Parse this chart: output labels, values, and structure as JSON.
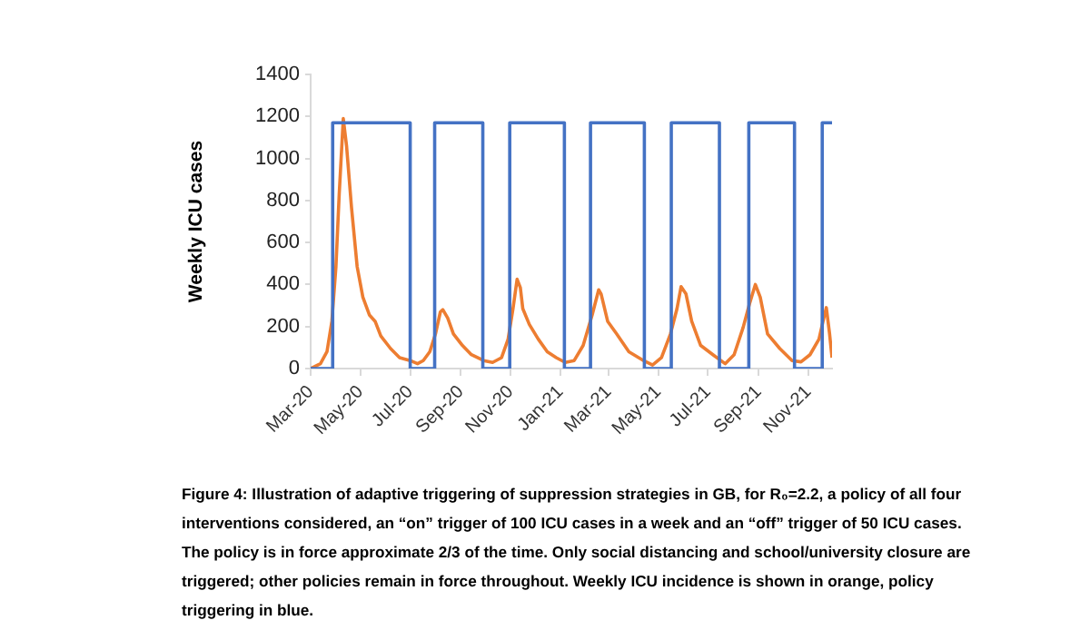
{
  "chart_data": {
    "type": "line",
    "ylabel": "Weekly ICU cases",
    "ylim": [
      0,
      1400
    ],
    "yticks": [
      0,
      200,
      400,
      600,
      800,
      1000,
      1200,
      1400
    ],
    "xlim": [
      "2020-03-01",
      "2021-11-30"
    ],
    "xticks": [
      {
        "value": "2020-03-01",
        "label": "Mar-20"
      },
      {
        "value": "2020-05-01",
        "label": "May-20"
      },
      {
        "value": "2020-07-01",
        "label": "Jul-20"
      },
      {
        "value": "2020-09-01",
        "label": "Sep-20"
      },
      {
        "value": "2020-11-01",
        "label": "Nov-20"
      },
      {
        "value": "2021-01-01",
        "label": "Jan-21"
      },
      {
        "value": "2021-03-01",
        "label": "Mar-21"
      },
      {
        "value": "2021-05-01",
        "label": "May-21"
      },
      {
        "value": "2021-07-01",
        "label": "Jul-21"
      },
      {
        "value": "2021-09-01",
        "label": "Sep-21"
      },
      {
        "value": "2021-11-01",
        "label": "Nov-21"
      }
    ],
    "grid": false,
    "legend": false,
    "marker": "none",
    "line_style": "solid",
    "series": [
      {
        "type": "step",
        "color": "#4472c4",
        "x": [
          "2020-03-01",
          "2020-03-28",
          "2020-07-01",
          "2020-07-31",
          "2020-09-28",
          "2020-10-31",
          "2021-01-06",
          "2021-02-07",
          "2021-04-14",
          "2021-05-17",
          "2021-07-15",
          "2021-08-20",
          "2021-10-15",
          "2021-11-18",
          "2021-11-30"
        ],
        "values": [
          0,
          1170,
          0,
          1170,
          0,
          1170,
          0,
          1170,
          0,
          1170,
          0,
          1170,
          0,
          1170,
          1170
        ]
      },
      {
        "type": "line",
        "color": "#ed7d31",
        "x": [
          "2020-03-01",
          "2020-03-13",
          "2020-03-21",
          "2020-03-27",
          "2020-04-01",
          "2020-04-05",
          "2020-04-10",
          "2020-04-14",
          "2020-04-20",
          "2020-04-27",
          "2020-05-04",
          "2020-05-12",
          "2020-05-19",
          "2020-05-26",
          "2020-06-07",
          "2020-06-18",
          "2020-07-01",
          "2020-07-10",
          "2020-07-17",
          "2020-07-25",
          "2020-08-01",
          "2020-08-07",
          "2020-08-10",
          "2020-08-16",
          "2020-08-23",
          "2020-09-03",
          "2020-09-14",
          "2020-09-29",
          "2020-10-10",
          "2020-10-21",
          "2020-10-29",
          "2020-11-04",
          "2020-11-09",
          "2020-11-13",
          "2020-11-16",
          "2020-11-24",
          "2020-12-05",
          "2020-12-16",
          "2020-12-27",
          "2021-01-07",
          "2021-01-18",
          "2021-01-29",
          "2021-02-09",
          "2021-02-17",
          "2021-02-20",
          "2021-02-28",
          "2021-03-11",
          "2021-03-26",
          "2021-04-13",
          "2021-04-24",
          "2021-05-05",
          "2021-05-16",
          "2021-05-24",
          "2021-05-29",
          "2021-06-04",
          "2021-06-11",
          "2021-06-22",
          "2021-07-07",
          "2021-07-22",
          "2021-08-02",
          "2021-08-13",
          "2021-08-21",
          "2021-08-28",
          "2021-09-03",
          "2021-09-12",
          "2021-09-27",
          "2021-10-12",
          "2021-10-23",
          "2021-11-03",
          "2021-11-14",
          "2021-11-19",
          "2021-11-23",
          "2021-11-27",
          "2021-11-30"
        ],
        "values": [
          0,
          23,
          80,
          225,
          485,
          830,
          1190,
          1060,
          770,
          485,
          340,
          255,
          225,
          155,
          95,
          52,
          38,
          23,
          38,
          80,
          165,
          270,
          280,
          240,
          165,
          110,
          66,
          38,
          29,
          52,
          140,
          285,
          425,
          385,
          285,
          210,
          140,
          80,
          52,
          29,
          38,
          110,
          255,
          375,
          355,
          225,
          165,
          80,
          38,
          17,
          52,
          165,
          285,
          390,
          355,
          225,
          110,
          66,
          23,
          66,
          195,
          310,
          400,
          340,
          165,
          95,
          38,
          32,
          66,
          140,
          225,
          290,
          165,
          52
        ]
      }
    ],
    "annotations": [
      "Figure 4: Illustration of adaptive triggering of suppression strategies in GB, for R₀=2.2, a policy of all four interventions considered, an “on” trigger of 100 ICU cases in a week and an “off” trigger of 50 ICU cases.  The policy is in force approximate 2/3 of the time. Only social distancing and school/university closure are triggered; other policies remain in force throughout. Weekly ICU incidence is shown in orange, policy triggering in blue."
    ]
  }
}
